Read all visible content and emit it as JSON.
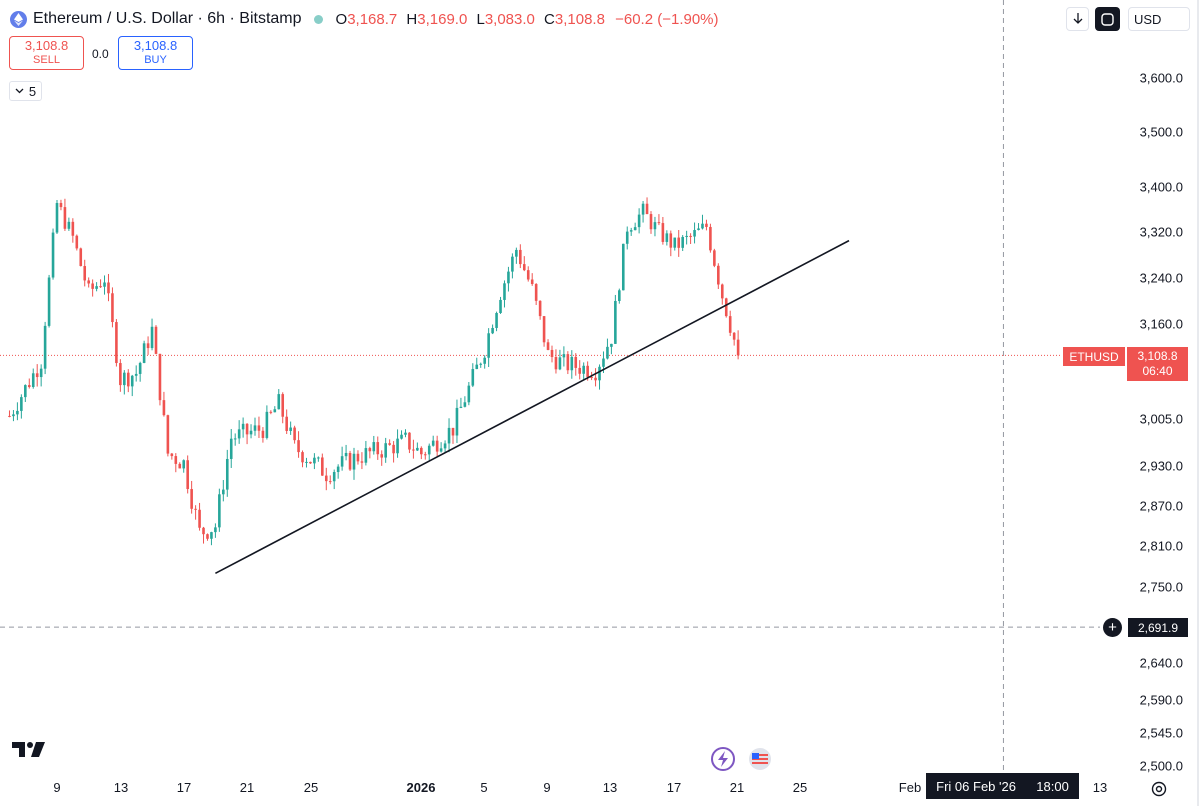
{
  "header": {
    "title": "Ethereum / U.S. Dollar · 6h · Bitstamp",
    "open_key": "O",
    "open": "3,168.7",
    "high_key": "H",
    "high": "3,169.0",
    "low_key": "L",
    "low": "3,083.0",
    "close_key": "C",
    "close": "3,108.8",
    "change": "−60.2 (−1.90%)"
  },
  "trade": {
    "sell_price": "3,108.8",
    "sell_label": "SELL",
    "spread": "0.0",
    "buy_price": "3,108.8",
    "buy_label": "BUY"
  },
  "indicators": {
    "count": "5"
  },
  "toolbar": {
    "currency": "USD"
  },
  "price_axis": {
    "labels": [
      "3,600.0",
      "3,500.0",
      "3,400.0",
      "3,320.0",
      "3,240.0",
      "3,160.0",
      "3,005.0",
      "2,930.0",
      "2,870.0",
      "2,810.0",
      "2,750.0",
      "2,640.0",
      "2,590.0",
      "2,545.0",
      "2,500.0"
    ],
    "symbol_tag": "ETHUSD",
    "last_price": "3,108.8",
    "countdown": "06:40",
    "crosshair_price": "2,691.9"
  },
  "time_axis": {
    "labels": [
      "9",
      "13",
      "17",
      "21",
      "25",
      "2026",
      "5",
      "9",
      "13",
      "17",
      "21",
      "25",
      "Feb",
      "13"
    ],
    "crosshair_date": "Fri 06 Feb '26",
    "crosshair_time": "18:00"
  },
  "colors": {
    "up": "#26a69a",
    "down": "#ef5350",
    "accent": "#2962ff"
  },
  "chart_data": {
    "type": "candlestick",
    "symbol": "ETHUSD",
    "interval": "6h",
    "last_price": 3108.8,
    "trendline": [
      {
        "date": "2025-12-19",
        "price": 2770
      },
      {
        "date": "2026-01-28",
        "price": 3305
      }
    ],
    "crosshair": {
      "date": "2026-02-06 18:00",
      "price": 2691.9
    },
    "anchors": [
      {
        "date": "2025-12-06",
        "close": 3010
      },
      {
        "date": "2025-12-08",
        "close": 3100
      },
      {
        "date": "2025-12-09",
        "close": 3370
      },
      {
        "date": "2025-12-10",
        "close": 3310
      },
      {
        "date": "2025-12-11",
        "close": 3215
      },
      {
        "date": "2025-12-12",
        "close": 3240
      },
      {
        "date": "2025-12-13",
        "close": 3070
      },
      {
        "date": "2025-12-14",
        "close": 3080
      },
      {
        "date": "2025-12-15",
        "close": 3150
      },
      {
        "date": "2025-12-16",
        "close": 2950
      },
      {
        "date": "2025-12-17",
        "close": 2935
      },
      {
        "date": "2025-12-18",
        "close": 2830
      },
      {
        "date": "2025-12-19",
        "close": 2840
      },
      {
        "date": "2025-12-20",
        "close": 2975
      },
      {
        "date": "2025-12-22",
        "close": 2990
      },
      {
        "date": "2025-12-23",
        "close": 3030
      },
      {
        "date": "2025-12-24",
        "close": 2960
      },
      {
        "date": "2025-12-26",
        "close": 2920
      },
      {
        "date": "2025-12-28",
        "close": 2945
      },
      {
        "date": "2025-12-30",
        "close": 2960
      },
      {
        "date": "2025-12-31",
        "close": 2970
      },
      {
        "date": "2026-01-01",
        "close": 2950
      },
      {
        "date": "2026-01-03",
        "close": 2990
      },
      {
        "date": "2026-01-05",
        "close": 3120
      },
      {
        "date": "2026-01-06",
        "close": 3215
      },
      {
        "date": "2026-01-07",
        "close": 3290
      },
      {
        "date": "2026-01-08",
        "close": 3220
      },
      {
        "date": "2026-01-09",
        "close": 3110
      },
      {
        "date": "2026-01-10",
        "close": 3095
      },
      {
        "date": "2026-01-12",
        "close": 3085
      },
      {
        "date": "2026-01-13",
        "close": 3140
      },
      {
        "date": "2026-01-14",
        "close": 3330
      },
      {
        "date": "2026-01-15",
        "close": 3355
      },
      {
        "date": "2026-01-16",
        "close": 3320
      },
      {
        "date": "2026-01-17",
        "close": 3295
      },
      {
        "date": "2026-01-18",
        "close": 3310
      },
      {
        "date": "2026-01-19",
        "close": 3330
      },
      {
        "date": "2026-01-20",
        "close": 3210
      },
      {
        "date": "2026-01-21",
        "close": 3108.8
      }
    ]
  }
}
